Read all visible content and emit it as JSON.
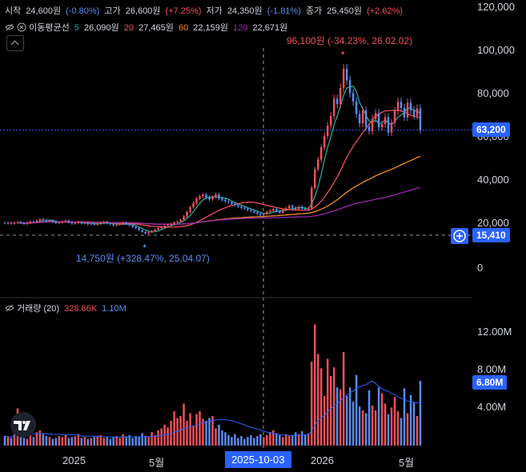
{
  "header": {
    "open_label": "시작",
    "open_value": "24,600원",
    "open_change": "(-0.80%)",
    "high_label": "고가",
    "high_value": "26,600원",
    "high_change": "(+7.25%)",
    "low_label": "저가",
    "low_value": "24,350원",
    "low_change": "(-1.81%)",
    "close_label": "종가",
    "close_value": "25,450원",
    "close_change": "(+2.62%)"
  },
  "ma": {
    "label": "이동평균선",
    "items": [
      {
        "period": "5",
        "value": "26,090원",
        "color": "#26a69a"
      },
      {
        "period": "20",
        "value": "27,465원",
        "color": "#f0505a"
      },
      {
        "period": "60",
        "value": "22,159원",
        "color": "#f28c28"
      },
      {
        "period": "120",
        "value": "22,671원",
        "color": "#9c27b0"
      }
    ]
  },
  "volume_header": {
    "label": "거래량 (20)",
    "value1": "328.66K",
    "value2": "1.10M"
  },
  "price_axis": {
    "ticks": [
      "120,000",
      "100,000",
      "80,000",
      "60,000",
      "40,000",
      "20,000",
      "0"
    ]
  },
  "volume_axis": {
    "ticks": [
      "12.00M",
      "8.00M",
      "4.00M"
    ]
  },
  "time_axis": {
    "labels": [
      "2025",
      "5월",
      "2026",
      "5월"
    ],
    "crosshair_date": "2025-10-03"
  },
  "tags": {
    "last_price": "63,200",
    "cursor_price": "15,410",
    "last_volume": "6.80M"
  },
  "annotations": {
    "high": "96,100원 (-34.23%, 26.02.02)",
    "low": "14,750원 (+328.47%, 25.04.07)"
  },
  "colors": {
    "up": "#f0505a",
    "down": "#5b8cf0",
    "bg": "#000000"
  },
  "chart_data": {
    "type": "candlestick",
    "xlabel": "",
    "ylabel": "",
    "ylim": [
      0,
      120000
    ],
    "volume_ylim": [
      0,
      14000000
    ],
    "closes": [
      20500,
      20800,
      20300,
      20900,
      21100,
      20600,
      20200,
      20700,
      21300,
      21000,
      21800,
      22400,
      22000,
      21500,
      21800,
      21200,
      20600,
      20800,
      21300,
      21700,
      20900,
      20400,
      20600,
      21100,
      20500,
      20700,
      20100,
      20300,
      19900,
      20400,
      20800,
      21200,
      20600,
      20100,
      19500,
      19800,
      20200,
      20700,
      20300,
      19600,
      18800,
      18200,
      17300,
      16500,
      15800,
      16400,
      17000,
      17600,
      18300,
      18900,
      19400,
      19800,
      20300,
      20900,
      21300,
      22100,
      23700,
      25700,
      27900,
      29800,
      31900,
      32900,
      33600,
      32400,
      31500,
      32600,
      33700,
      31900,
      31300,
      30600,
      30200,
      29400,
      28800,
      28200,
      27600,
      27200,
      26600,
      26100,
      25500,
      24900,
      24300,
      24800,
      25700,
      26300,
      27000,
      26100,
      25400,
      26700,
      27400,
      28500,
      27700,
      27000,
      28100,
      27300,
      26900,
      27400,
      36800,
      45300,
      49700,
      55300,
      60600,
      65400,
      69800,
      77600,
      75200,
      82600,
      91300,
      86100,
      80200,
      76400,
      70600,
      66300,
      72300,
      64800,
      62800,
      68400,
      71100,
      64600,
      66000,
      69200,
      62100,
      66700,
      72100,
      76200,
      73400,
      69100,
      75800,
      72400,
      69800,
      73200,
      63200
    ],
    "volume_m": [
      1.0,
      0.9,
      0.8,
      1.2,
      3.9,
      1.0,
      0.8,
      0.7,
      1.1,
      0.9,
      1.4,
      1.6,
      1.2,
      1.0,
      0.9,
      0.7,
      0.8,
      1.0,
      0.9,
      1.1,
      0.8,
      0.9,
      1.0,
      1.2,
      0.8,
      0.9,
      0.7,
      0.8,
      0.9,
      1.0,
      1.1,
      0.8,
      0.9,
      0.7,
      0.9,
      1.0,
      0.8,
      1.2,
      0.9,
      1.1,
      0.8,
      1.0,
      0.9,
      1.3,
      1.0,
      0.9,
      1.4,
      1.1,
      1.6,
      1.8,
      2.2,
      1.9,
      2.6,
      3.6,
      2.9,
      3.1,
      4.4,
      2.6,
      3.4,
      2.1,
      3.3,
      3.6,
      2.8,
      2.6,
      2.9,
      3.1,
      1.8,
      2.2,
      1.6,
      1.4,
      1.1,
      0.9,
      1.2,
      0.8,
      1.0,
      0.7,
      0.9,
      1.1,
      0.8,
      1.0,
      1.2,
      0.9,
      1.1,
      1.4,
      1.6,
      1.3,
      1.1,
      0.9,
      1.2,
      1.0,
      1.1,
      1.4,
      1.2,
      1.5,
      1.1,
      1.3,
      8.8,
      12.7,
      9.6,
      8.1,
      5.2,
      9.1,
      7.3,
      8.2,
      6.1,
      5.9,
      9.8,
      5.2,
      6.1,
      4.6,
      7.4,
      4.1,
      3.7,
      3.4,
      5.8,
      4.2,
      3.7,
      6.1,
      5.5,
      4.4,
      3.3,
      4.0,
      5.1,
      3.6,
      2.9,
      6.0,
      3.4,
      5.3,
      4.5,
      3.1,
      6.8
    ]
  }
}
